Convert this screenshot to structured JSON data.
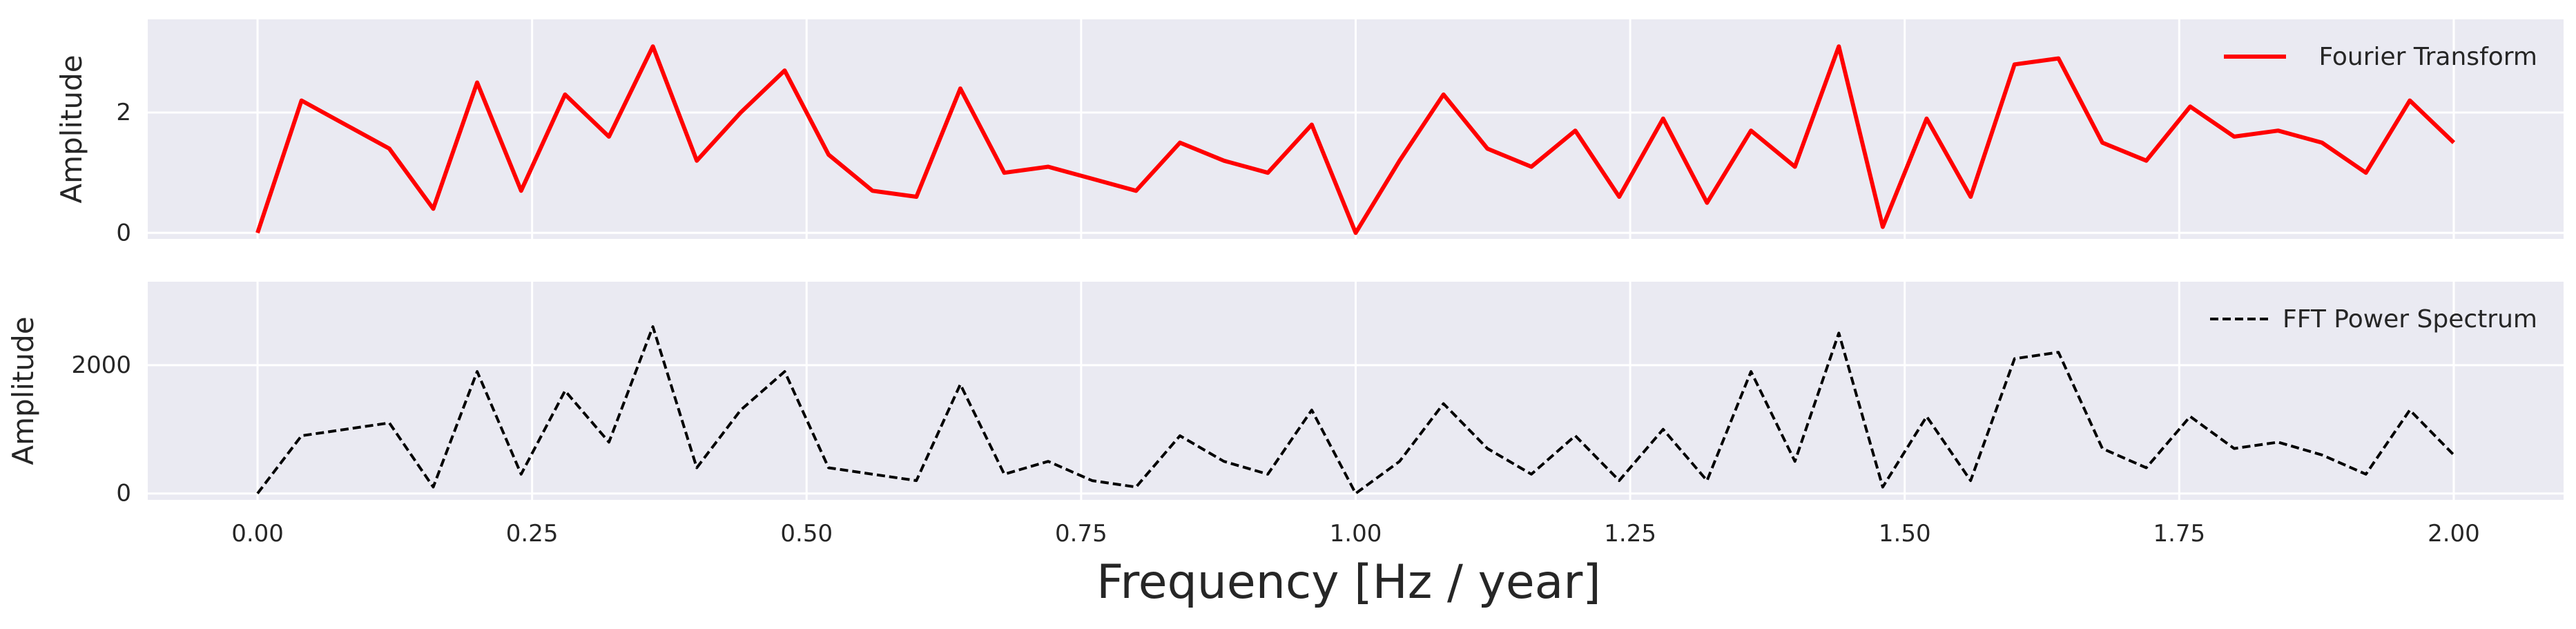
{
  "chart_data": [
    {
      "type": "line",
      "ylabel": "Amplitude",
      "xlim": [
        -0.1,
        2.1
      ],
      "ylim": [
        -0.1,
        3.55
      ],
      "yticks": [
        0,
        2
      ],
      "ytick_labels": [
        "0",
        "2"
      ],
      "grid": true,
      "legend_position": "top-right",
      "series": [
        {
          "name": "Fourier Transform",
          "color": "#ff0000",
          "style": "solid",
          "x": [
            0.0,
            0.04,
            0.08,
            0.12,
            0.16,
            0.2,
            0.24,
            0.28,
            0.32,
            0.36,
            0.4,
            0.44,
            0.48,
            0.52,
            0.56,
            0.6,
            0.64,
            0.68,
            0.72,
            0.76,
            0.8,
            0.84,
            0.88,
            0.92,
            0.96,
            1.0,
            1.04,
            1.08,
            1.12,
            1.16,
            1.2,
            1.24,
            1.28,
            1.32,
            1.36,
            1.4,
            1.44,
            1.48,
            1.52,
            1.56,
            1.6,
            1.64,
            1.68,
            1.72,
            1.76,
            1.8,
            1.84,
            1.88,
            1.92,
            1.96,
            2.0
          ],
          "values": [
            0.0,
            2.2,
            1.8,
            1.4,
            0.4,
            2.5,
            0.7,
            2.3,
            1.6,
            3.1,
            1.2,
            2.0,
            2.7,
            1.3,
            0.7,
            0.6,
            2.4,
            1.0,
            1.1,
            0.9,
            0.7,
            1.5,
            1.2,
            1.0,
            1.8,
            0.0,
            1.2,
            2.3,
            1.4,
            1.1,
            1.7,
            0.6,
            1.9,
            0.5,
            1.7,
            1.1,
            3.1,
            0.1,
            1.9,
            0.6,
            2.8,
            2.9,
            1.5,
            1.2,
            2.1,
            1.6,
            1.7,
            1.5,
            1.0,
            2.2,
            1.5
          ]
        }
      ]
    },
    {
      "type": "line",
      "ylabel": "Amplitude",
      "xlabel": "Frequency [Hz / year]",
      "xlim": [
        -0.1,
        2.1
      ],
      "ylim": [
        -100,
        3300
      ],
      "xticks": [
        0.0,
        0.25,
        0.5,
        0.75,
        1.0,
        1.25,
        1.5,
        1.75,
        2.0
      ],
      "xtick_labels": [
        "0.00",
        "0.25",
        "0.50",
        "0.75",
        "1.00",
        "1.25",
        "1.50",
        "1.75",
        "2.00"
      ],
      "yticks": [
        0,
        2000
      ],
      "ytick_labels": [
        "0",
        "2000"
      ],
      "grid": true,
      "legend_position": "top-right",
      "series": [
        {
          "name": "FFT Power Spectrum",
          "color": "#000000",
          "style": "dashed",
          "x": [
            0.0,
            0.04,
            0.08,
            0.12,
            0.16,
            0.2,
            0.24,
            0.28,
            0.32,
            0.36,
            0.4,
            0.44,
            0.48,
            0.52,
            0.56,
            0.6,
            0.64,
            0.68,
            0.72,
            0.76,
            0.8,
            0.84,
            0.88,
            0.92,
            0.96,
            1.0,
            1.04,
            1.08,
            1.12,
            1.16,
            1.2,
            1.24,
            1.28,
            1.32,
            1.36,
            1.4,
            1.44,
            1.48,
            1.52,
            1.56,
            1.6,
            1.64,
            1.68,
            1.72,
            1.76,
            1.8,
            1.84,
            1.88,
            1.92,
            1.96,
            2.0
          ],
          "values": [
            0,
            900,
            1000,
            1100,
            100,
            1900,
            300,
            1600,
            800,
            2600,
            400,
            1300,
            1900,
            400,
            300,
            200,
            1700,
            300,
            500,
            200,
            100,
            900,
            500,
            300,
            1300,
            0,
            500,
            1400,
            700,
            300,
            900,
            200,
            1000,
            200,
            1900,
            500,
            2500,
            100,
            1200,
            200,
            2100,
            2200,
            700,
            400,
            1200,
            700,
            800,
            600,
            300,
            1300,
            600
          ]
        }
      ]
    }
  ]
}
